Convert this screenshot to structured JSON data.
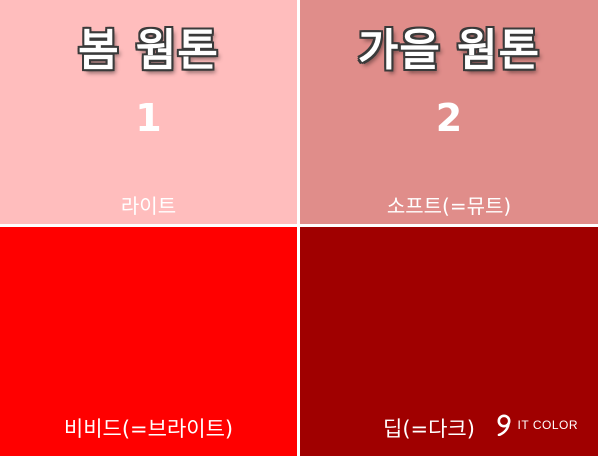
{
  "panels": [
    {
      "id": "light",
      "season": "봄 웜톤",
      "number": "1",
      "tone": "라이트",
      "color": "#ffbdbd"
    },
    {
      "id": "soft",
      "season": "가을 웜톤",
      "number": "2",
      "tone": "소프트(=뮤트)",
      "color": "#e08d8a"
    },
    {
      "id": "vivid",
      "tone": "비비드(=브라이트)",
      "color": "#ff0000"
    },
    {
      "id": "deep",
      "tone": "딥(=다크)",
      "color": "#a00000"
    }
  ],
  "logo": {
    "text": "IT COLOR",
    "icon": "itcolor-logo-icon"
  }
}
